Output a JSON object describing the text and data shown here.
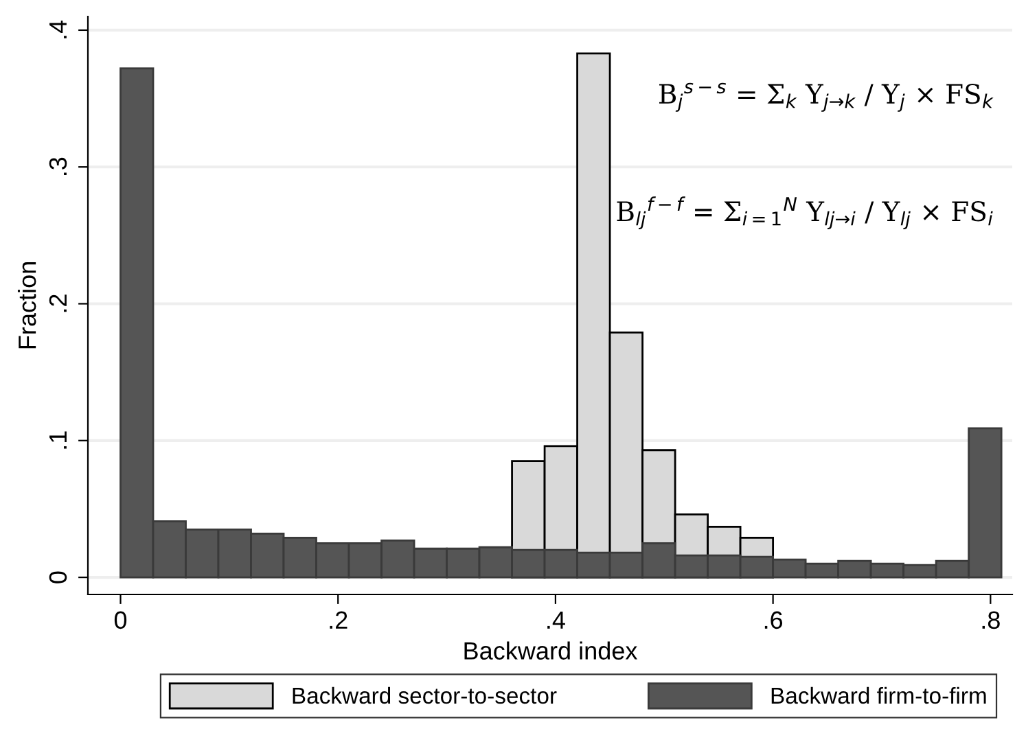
{
  "chart_data": {
    "type": "histogram",
    "xlabel": "Backward index",
    "ylabel": "Fraction",
    "bins": [
      0,
      0.03,
      0.06,
      0.09,
      0.12,
      0.15,
      0.18,
      0.21,
      0.24,
      0.27,
      0.3,
      0.33,
      0.36,
      0.39,
      0.42,
      0.45,
      0.48,
      0.51,
      0.54,
      0.57,
      0.6,
      0.63,
      0.66,
      0.69,
      0.72,
      0.75,
      0.78,
      0.81
    ],
    "series": [
      {
        "name": "Backward sector-to-sector",
        "color": "#d9d9d9",
        "values": [
          null,
          null,
          null,
          null,
          null,
          null,
          null,
          null,
          null,
          null,
          null,
          null,
          0.085,
          0.096,
          0.383,
          0.179,
          0.093,
          0.046,
          0.037,
          0.029,
          null,
          null,
          null,
          null,
          null,
          null,
          null
        ]
      },
      {
        "name": "Backward firm-to-firm",
        "color": "#555555",
        "values": [
          0.372,
          0.041,
          0.035,
          0.035,
          0.032,
          0.029,
          0.025,
          0.025,
          0.027,
          0.021,
          0.021,
          0.022,
          0.02,
          0.02,
          0.018,
          0.018,
          0.025,
          0.016,
          0.016,
          0.015,
          0.013,
          0.01,
          0.012,
          0.01,
          0.009,
          0.012,
          0.109
        ]
      }
    ],
    "xlim": [
      -0.03,
      0.82
    ],
    "xticks": [
      {
        "value": 0,
        "label": "0"
      },
      {
        "value": 0.2,
        "label": ".2"
      },
      {
        "value": 0.4,
        "label": ".4"
      },
      {
        "value": 0.6,
        "label": ".6"
      },
      {
        "value": 0.8,
        "label": ".8"
      }
    ],
    "ylim": [
      -0.0125,
      0.41
    ],
    "yticks": [
      {
        "value": 0,
        "label": "0"
      },
      {
        "value": 0.1,
        "label": ".1"
      },
      {
        "value": 0.2,
        "label": ".2"
      },
      {
        "value": 0.3,
        "label": ".3"
      },
      {
        "value": 0.4,
        "label": ".4"
      }
    ],
    "grid": "y",
    "legend": "bottom",
    "annotations": [
      "B$_{j}$$^{s−s}$ = Σ$_{k}$ Y$_{j→k}$ / Y$_{j}$ × FS$_{k}$",
      "B$_{lj}$$^{f−f}$ = Σ$_{i=1}$$^{N}$ Y$_{lj→i}$ / Y$_{lj}$ × FS$_{i}$"
    ]
  }
}
